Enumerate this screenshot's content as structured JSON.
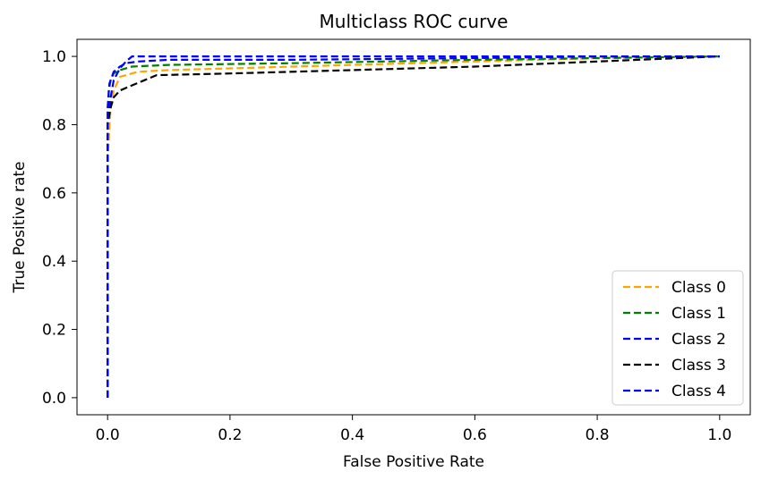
{
  "chart_data": {
    "type": "line",
    "title": "Multiclass ROC curve",
    "xlabel": "False Positive Rate",
    "ylabel": "True Positive rate",
    "xlim": [
      -0.05,
      1.05
    ],
    "ylim": [
      -0.05,
      1.05
    ],
    "xticks": [
      0.0,
      0.2,
      0.4,
      0.6,
      0.8,
      1.0
    ],
    "xtick_labels": [
      "0.0",
      "0.2",
      "0.4",
      "0.6",
      "0.8",
      "1.0"
    ],
    "yticks": [
      0.0,
      0.2,
      0.4,
      0.6,
      0.8,
      1.0
    ],
    "ytick_labels": [
      "0.0",
      "0.2",
      "0.4",
      "0.6",
      "0.8",
      "1.0"
    ],
    "grid": false,
    "legend_position": "lower-right",
    "line_style": "dashed",
    "series": [
      {
        "name": "Class 0",
        "color": "#ffa500",
        "x": [
          0.0,
          0.0,
          0.005,
          0.01,
          0.02,
          0.05,
          0.1,
          0.2,
          0.4,
          0.6,
          0.8,
          1.0
        ],
        "y": [
          0.0,
          0.7,
          0.85,
          0.9,
          0.94,
          0.955,
          0.96,
          0.965,
          0.975,
          0.985,
          0.995,
          1.0
        ]
      },
      {
        "name": "Class 1",
        "color": "#008000",
        "x": [
          0.0,
          0.0,
          0.002,
          0.005,
          0.01,
          0.02,
          0.04,
          0.1,
          0.3,
          0.6,
          0.8,
          1.0
        ],
        "y": [
          0.0,
          0.8,
          0.9,
          0.93,
          0.95,
          0.96,
          0.97,
          0.975,
          0.98,
          0.99,
          0.995,
          1.0
        ]
      },
      {
        "name": "Class 2",
        "color": "#0000ff",
        "x": [
          0.0,
          0.0,
          0.005,
          0.01,
          0.02,
          0.03,
          0.04,
          0.1,
          0.4,
          0.7,
          1.0
        ],
        "y": [
          0.0,
          0.8,
          0.88,
          0.93,
          0.965,
          0.985,
          1.0,
          1.0,
          1.0,
          1.0,
          1.0
        ]
      },
      {
        "name": "Class 3",
        "color": "#000000",
        "x": [
          0.0,
          0.0,
          0.005,
          0.01,
          0.02,
          0.04,
          0.06,
          0.08,
          0.2,
          0.4,
          0.6,
          0.8,
          1.0
        ],
        "y": [
          0.0,
          0.8,
          0.85,
          0.88,
          0.9,
          0.915,
          0.93,
          0.945,
          0.95,
          0.96,
          0.97,
          0.985,
          1.0
        ]
      },
      {
        "name": "Class 4",
        "color": "#0000ff",
        "x": [
          0.0,
          0.0,
          0.003,
          0.01,
          0.02,
          0.03,
          0.05,
          0.1,
          0.3,
          0.6,
          0.8,
          1.0
        ],
        "y": [
          0.0,
          0.85,
          0.92,
          0.955,
          0.97,
          0.98,
          0.985,
          0.99,
          0.99,
          0.995,
          1.0,
          1.0
        ]
      }
    ]
  }
}
